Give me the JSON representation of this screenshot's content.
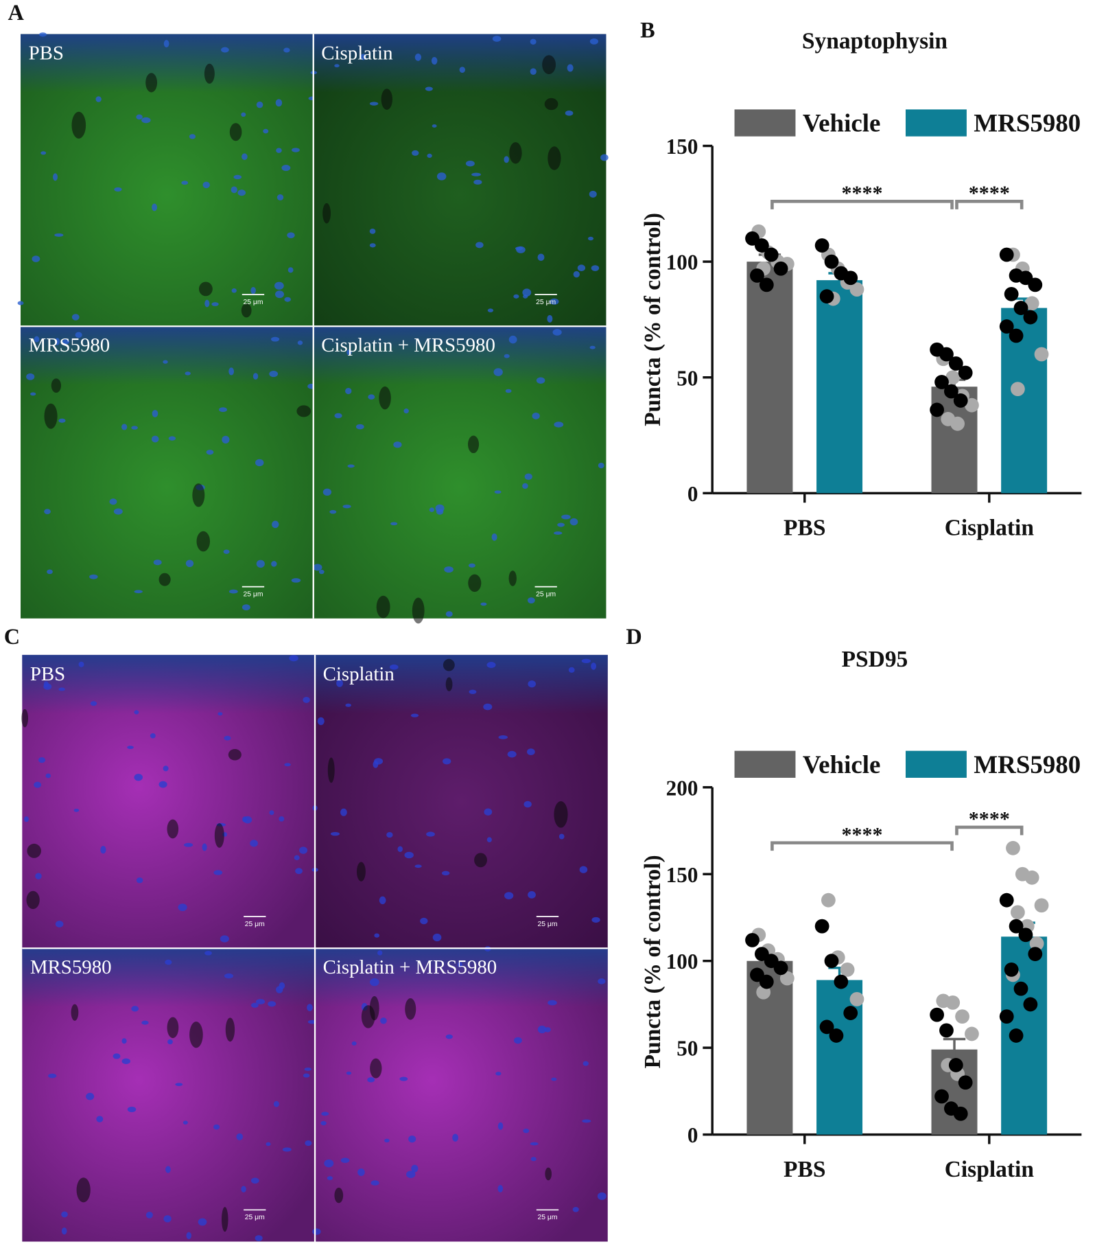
{
  "figure": {
    "panel_labels": [
      "A",
      "B",
      "C",
      "D"
    ],
    "micrographs": [
      {
        "labels": [
          "PBS",
          "Cisplatin",
          "MRS5980",
          "Cisplatin + MRS5980"
        ],
        "scale_bar": "25 μm"
      },
      {
        "labels": [
          "PBS",
          "Cisplatin",
          "MRS5980",
          "Cisplatin + MRS5980"
        ],
        "scale_bar": "25 μm"
      }
    ]
  },
  "chart_data": [
    {
      "type": "bar",
      "title": "Synaptophysin",
      "y_label": "Puncta (% of control)",
      "categories": [
        "PBS",
        "Cisplatin"
      ],
      "ylim": [
        0,
        150
      ],
      "yticks": [
        0,
        50,
        100,
        150
      ],
      "legend": "top",
      "dark_color": "#000000",
      "light_color": "#aaaaaa",
      "series": [
        {
          "name": "Vehicle",
          "color": "#636363",
          "values": [
            100,
            46
          ],
          "errors": [
            3,
            3
          ],
          "points_dark": [
            [
              110,
              107,
              103,
              97,
              94,
              90
            ],
            [
              62,
              60,
              56,
              52,
              48,
              44,
              40,
              36
            ]
          ],
          "points_light": [
            [
              113,
              104,
              100,
              99,
              97
            ],
            [
              58,
              50,
              42,
              38,
              32,
              30
            ]
          ]
        },
        {
          "name": "MRS5980",
          "color": "#0e7f96",
          "values": [
            92,
            80
          ],
          "errors": [
            3,
            4
          ],
          "points_dark": [
            [
              107,
              100,
              95,
              93,
              85
            ],
            [
              103,
              94,
              93,
              90,
              86,
              80,
              76,
              72,
              68
            ]
          ],
          "points_light": [
            [
              103,
              97,
              91,
              88,
              84
            ],
            [
              103,
              97,
              82,
              60,
              45
            ]
          ]
        }
      ],
      "brackets": [
        {
          "label": "****",
          "from": [
            0,
            0
          ],
          "to": [
            1,
            0
          ]
        },
        {
          "label": "****",
          "from": [
            1,
            0
          ],
          "to": [
            1,
            1
          ]
        }
      ]
    },
    {
      "type": "bar",
      "title": "PSD95",
      "y_label": "Puncta (% of control)",
      "categories": [
        "PBS",
        "Cisplatin"
      ],
      "ylim": [
        0,
        200
      ],
      "yticks": [
        0,
        50,
        100,
        150,
        200
      ],
      "legend": "top",
      "dark_color": "#000000",
      "light_color": "#aaaaaa",
      "series": [
        {
          "name": "Vehicle",
          "color": "#636363",
          "values": [
            100,
            49
          ],
          "errors": [
            3,
            6
          ],
          "points_dark": [
            [
              112,
              104,
              100,
              96,
              92,
              88
            ],
            [
              69,
              60,
              40,
              30,
              22,
              15,
              12
            ]
          ],
          "points_light": [
            [
              115,
              106,
              101,
              90,
              82
            ],
            [
              77,
              76,
              68,
              58,
              40,
              35
            ]
          ]
        },
        {
          "name": "MRS5980",
          "color": "#0e7f96",
          "values": [
            89,
            114
          ],
          "errors": [
            7,
            8
          ],
          "points_dark": [
            [
              120,
              100,
              88,
              70,
              62,
              57
            ],
            [
              135,
              120,
              115,
              104,
              95,
              84,
              75,
              68,
              57
            ]
          ],
          "points_light": [
            [
              135,
              102,
              95,
              78
            ],
            [
              165,
              150,
              148,
              132,
              128,
              120,
              110,
              92
            ]
          ]
        }
      ],
      "brackets": [
        {
          "label": "****",
          "from": [
            0,
            0
          ],
          "to": [
            1,
            0
          ]
        },
        {
          "label": "****",
          "from": [
            1,
            0
          ],
          "to": [
            1,
            1
          ]
        }
      ]
    }
  ]
}
